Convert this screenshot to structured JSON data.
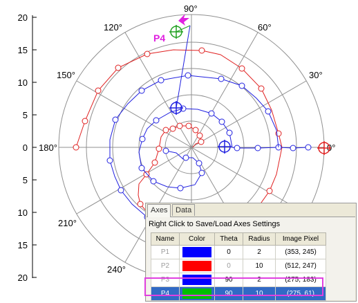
{
  "plot": {
    "y_tick_labels": [
      "20",
      "15",
      "10",
      "5",
      "0",
      "5",
      "10",
      "15",
      "20"
    ],
    "angle_labels": {
      "a90": "90°",
      "a60": "60°",
      "a30": "30°",
      "a0": "0°",
      "a120": "120°",
      "a150": "150°",
      "a180": "180°",
      "a210": "210°",
      "a240": "240°"
    },
    "point_label": "P4",
    "colors": {
      "grid": "#909090",
      "red_curve": "#e02020",
      "blue_curve": "#2020e0",
      "point_label": "#e020e0",
      "green_marker": "#20a020"
    }
  },
  "panel": {
    "tabs": [
      "Axes",
      "Data"
    ],
    "active_tab": "Axes",
    "hint": "Right Click to Save/Load Axes Settings",
    "columns": [
      "Name",
      "Color",
      "Theta",
      "Radius",
      "Image Pixel"
    ],
    "rows": [
      {
        "name": "P1",
        "color": "#0000ff",
        "theta": "0",
        "radius": "2",
        "pixel": "(353, 245)"
      },
      {
        "name": "P2",
        "color": "#ff0000",
        "theta": "0",
        "radius": "10",
        "pixel": "(512, 247)"
      },
      {
        "name": "P3",
        "color": "#0000ff",
        "theta": "90",
        "radius": "2",
        "pixel": "(275, 183)"
      },
      {
        "name": "P4",
        "color": "#00c000",
        "theta": "90",
        "radius": "10",
        "pixel": "(275, 61)"
      }
    ]
  }
}
